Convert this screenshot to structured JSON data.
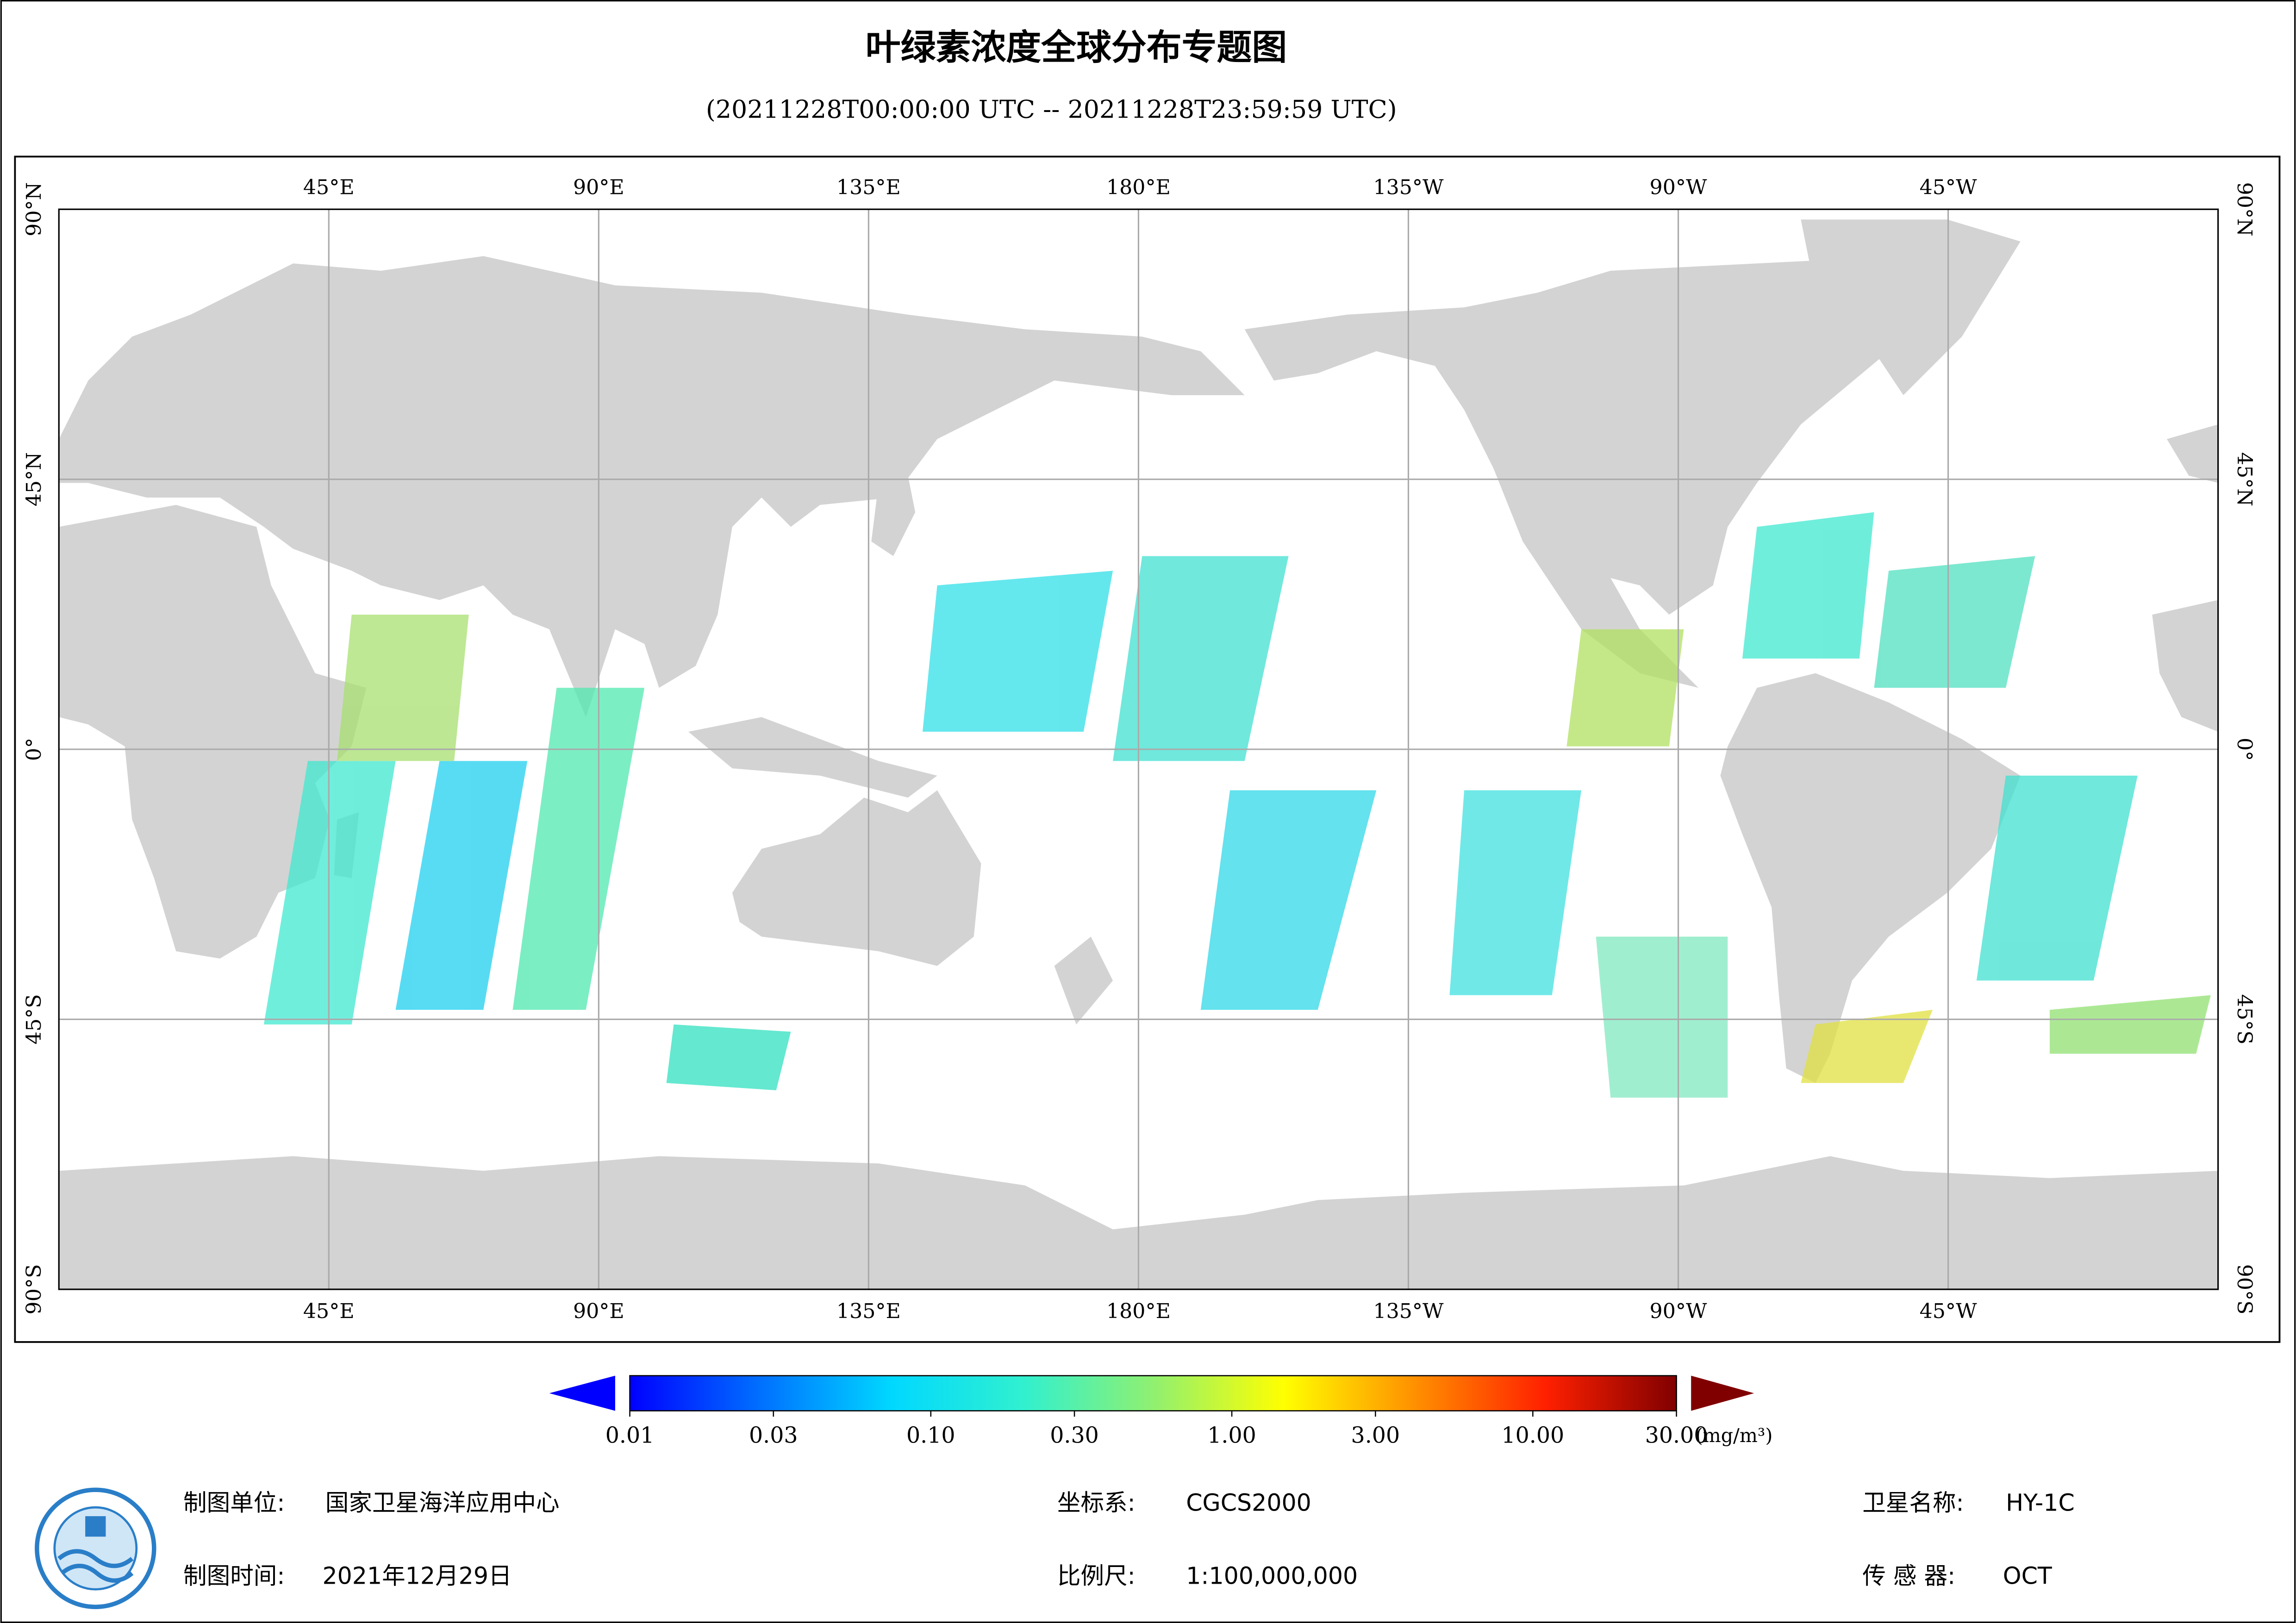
{
  "header": {
    "title": "叶绿素浓度全球分布专题图",
    "subtitle": "(20211228T00:00:00 UTC -- 20211228T23:59:59 UTC)"
  },
  "map": {
    "xlim": [
      0,
      360
    ],
    "ylim": [
      -90,
      90
    ],
    "lon_ticks": [
      {
        "value": 45,
        "label": "45°E"
      },
      {
        "value": 90,
        "label": "90°E"
      },
      {
        "value": 135,
        "label": "135°E"
      },
      {
        "value": 180,
        "label": "180°E"
      },
      {
        "value": 225,
        "label": "135°W"
      },
      {
        "value": 270,
        "label": "90°W"
      },
      {
        "value": 315,
        "label": "45°W"
      }
    ],
    "lat_ticks": [
      {
        "value": 90,
        "label": "90°N"
      },
      {
        "value": 45,
        "label": "45°N"
      },
      {
        "value": 0,
        "label": "0°"
      },
      {
        "value": -45,
        "label": "45°S"
      },
      {
        "value": -90,
        "label": "90°S"
      }
    ]
  },
  "colorbar": {
    "log": true,
    "lim": [
      0.01,
      30
    ],
    "unit": "(mg/m³)",
    "colors": [
      "#0000ff",
      "#0070ff",
      "#00d8ff",
      "#30f0d0",
      "#90f070",
      "#ffff00",
      "#ff9000",
      "#ff2000",
      "#800000"
    ],
    "ticks": [
      {
        "value": 0.01,
        "label": "0.01"
      },
      {
        "value": 0.03,
        "label": "0.03"
      },
      {
        "value": 0.1,
        "label": "0.10"
      },
      {
        "value": 0.3,
        "label": "0.30"
      },
      {
        "value": 1,
        "label": "1.00"
      },
      {
        "value": 3,
        "label": "3.00"
      },
      {
        "value": 10,
        "label": "10.00"
      },
      {
        "value": 30,
        "label": "30.00"
      }
    ]
  },
  "footer": {
    "items": [
      {
        "label": "制图单位:",
        "value": "国家卫星海洋应用中心"
      },
      {
        "label": "坐标系:",
        "value": "CGCS2000"
      },
      {
        "label": "卫星名称:",
        "value": "HY-1C"
      },
      {
        "label": "制图时间:",
        "value": "2021年12月29日"
      },
      {
        "label": "比例尺:",
        "value": "1:100,000,000"
      },
      {
        "label": "传 感 器:",
        "value": "OCT"
      }
    ]
  }
}
